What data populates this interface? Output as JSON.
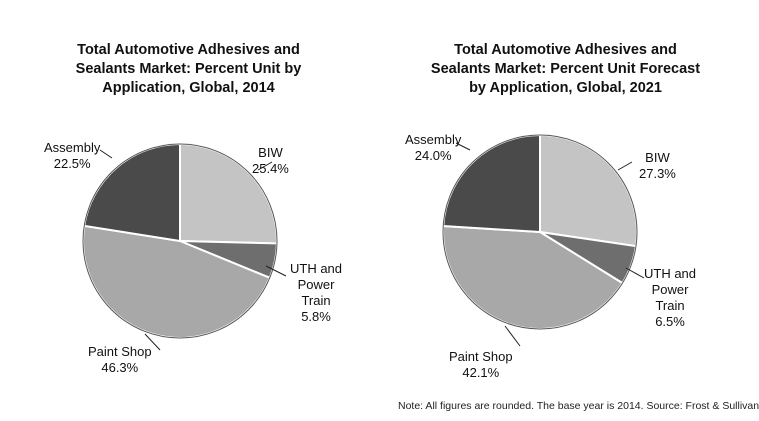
{
  "chart_data": [
    {
      "type": "pie",
      "title_lines": [
        "Total Automotive Adhesives and",
        "Sealants Market: Percent Unit by",
        "Application, Global, 2014"
      ],
      "slices": [
        {
          "label_lines": [
            "BIW"
          ],
          "value": 25.4,
          "value_text": "25.4%",
          "color": "#c4c4c4"
        },
        {
          "label_lines": [
            "UTH and",
            "Power",
            "Train"
          ],
          "value": 5.8,
          "value_text": "5.8%",
          "color": "#6e6e6e"
        },
        {
          "label_lines": [
            "Paint Shop"
          ],
          "value": 46.3,
          "value_text": "46.3%",
          "color": "#a8a8a8"
        },
        {
          "label_lines": [
            "Assembly"
          ],
          "value": 22.5,
          "value_text": "22.5%",
          "color": "#4a4a4a"
        }
      ]
    },
    {
      "type": "pie",
      "title_lines": [
        "Total Automotive Adhesives and",
        "Sealants Market: Percent Unit Forecast",
        "by Application, Global, 2021"
      ],
      "slices": [
        {
          "label_lines": [
            "BIW"
          ],
          "value": 27.3,
          "value_text": "27.3%",
          "color": "#c4c4c4"
        },
        {
          "label_lines": [
            "UTH and",
            "Power",
            "Train"
          ],
          "value": 6.5,
          "value_text": "6.5%",
          "color": "#6e6e6e"
        },
        {
          "label_lines": [
            "Paint Shop"
          ],
          "value": 42.1,
          "value_text": "42.1%",
          "color": "#a8a8a8"
        },
        {
          "label_lines": [
            "Assembly"
          ],
          "value": 24.0,
          "value_text": "24.0%",
          "color": "#4a4a4a"
        }
      ]
    }
  ],
  "note": "Note: All figures are rounded. The base year is 2014. Source: Frost & Sullivan"
}
